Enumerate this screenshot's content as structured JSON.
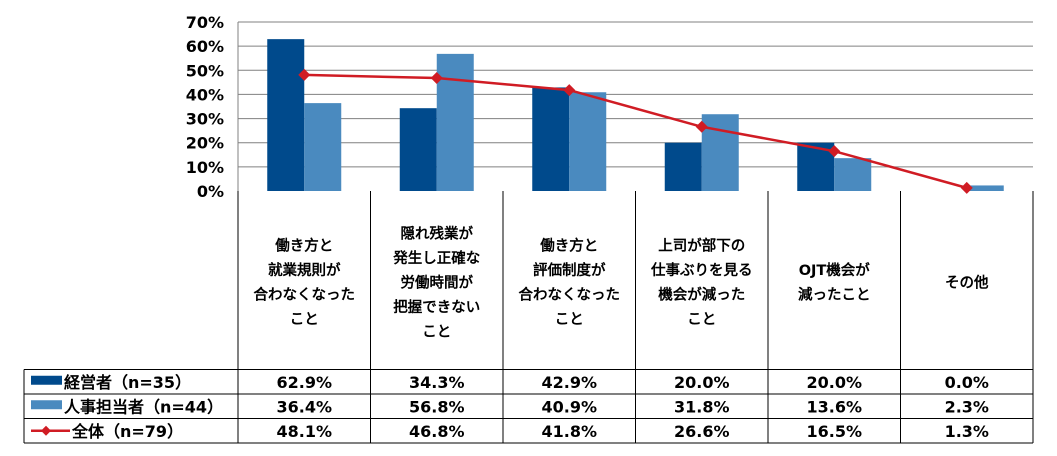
{
  "chart_data": {
    "type": "bar",
    "categories": [
      [
        "働き方と",
        "就業規則が",
        "合わなくなった",
        "こと"
      ],
      [
        "隠れ残業が",
        "発生し正確な",
        "労働時間が",
        "把握できない",
        "こと"
      ],
      [
        "働き方と",
        "評価制度が",
        "合わなくなった",
        "こと"
      ],
      [
        "上司が部下の",
        "仕事ぶりを見る",
        "機会が減った",
        "こと"
      ],
      [
        "OJT機会が",
        "減ったこと"
      ],
      [
        "その他"
      ]
    ],
    "ylim": [
      0,
      70
    ],
    "yticks": [
      "0%",
      "10%",
      "20%",
      "30%",
      "40%",
      "50%",
      "60%",
      "70%"
    ],
    "grid": true,
    "legend_position": "data-table",
    "series": [
      {
        "name": "経営者（n=35）",
        "kind": "bar",
        "color": "#004A8C",
        "values": [
          62.9,
          34.3,
          42.9,
          20.0,
          20.0,
          0.0
        ],
        "labels": [
          "62.9%",
          "34.3%",
          "42.9%",
          "20.0%",
          "20.0%",
          "0.0%"
        ]
      },
      {
        "name": "人事担当者（n=44）",
        "kind": "bar",
        "color": "#4A8ABF",
        "values": [
          36.4,
          56.8,
          40.9,
          31.8,
          13.6,
          2.3
        ],
        "labels": [
          "36.4%",
          "56.8%",
          "40.9%",
          "31.8%",
          "13.6%",
          "2.3%"
        ]
      },
      {
        "name": "全体（n=79）",
        "kind": "line",
        "color": "#D01C24",
        "values": [
          48.1,
          46.8,
          41.8,
          26.6,
          16.5,
          1.3
        ],
        "labels": [
          "48.1%",
          "46.8%",
          "41.8%",
          "26.6%",
          "16.5%",
          "1.3%"
        ]
      }
    ]
  }
}
